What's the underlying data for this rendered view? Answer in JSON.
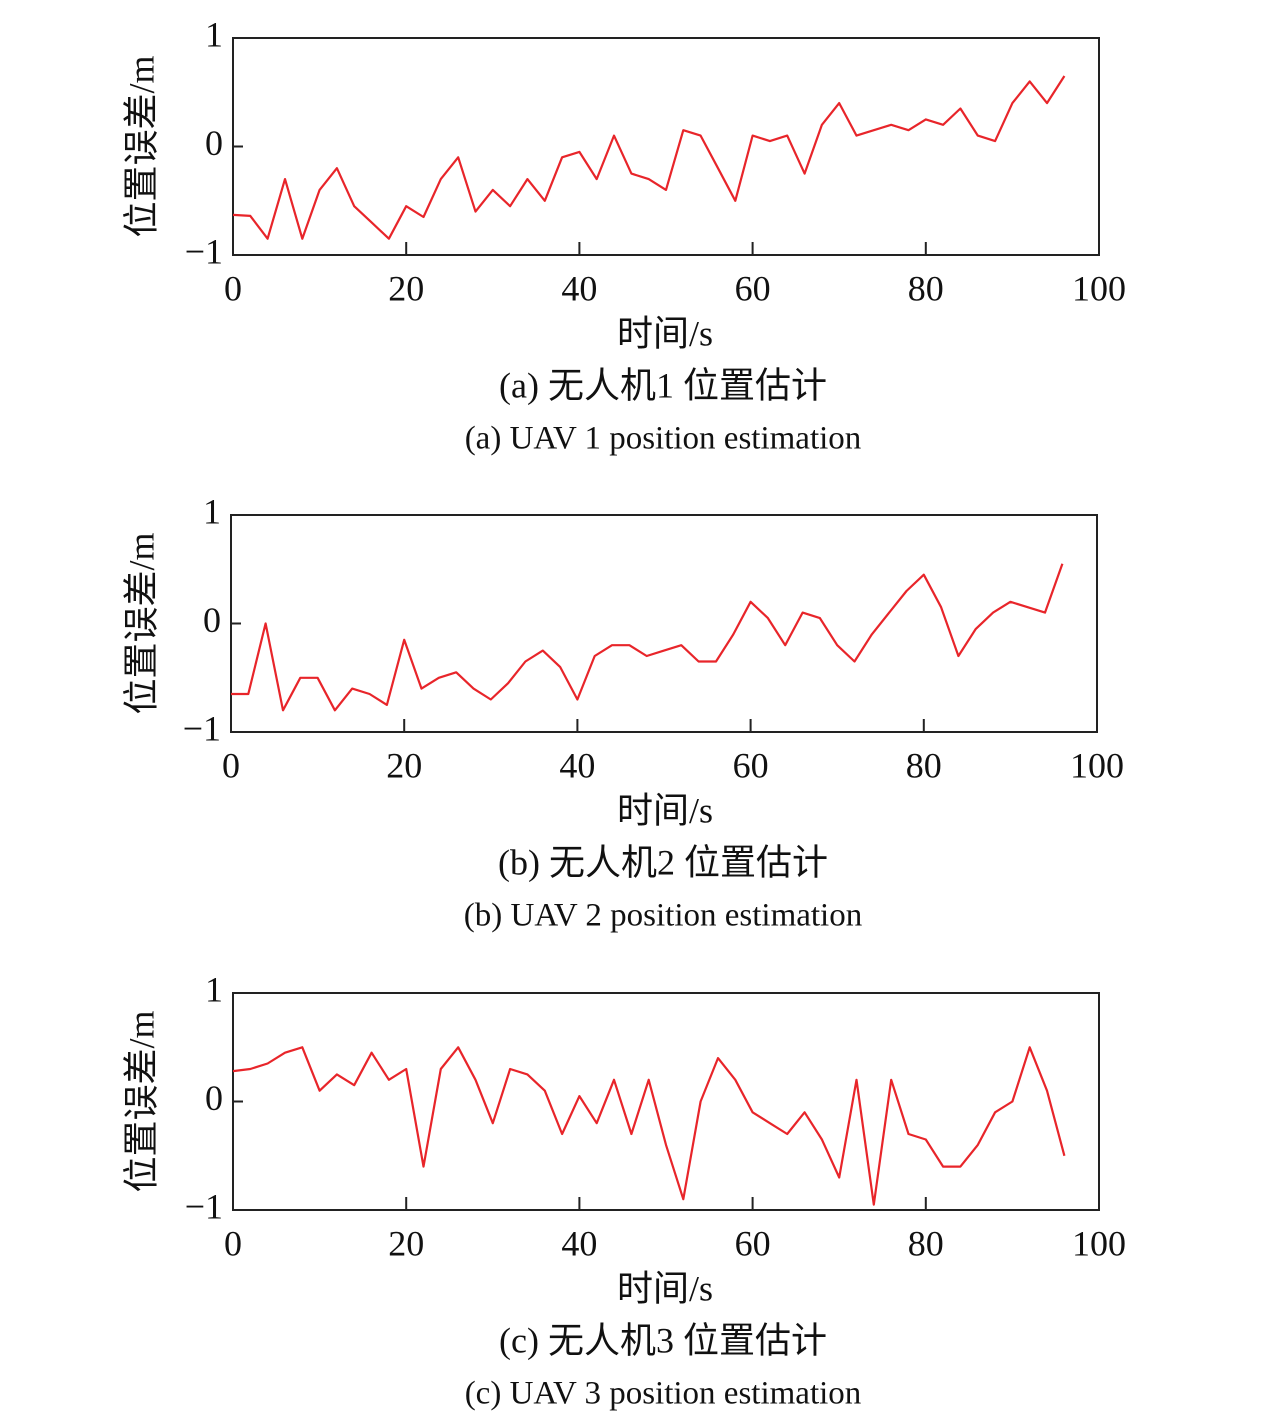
{
  "chart_data": [
    {
      "type": "line",
      "ylabel": "位置误差/m",
      "xlabel": "时间/s",
      "caption": "(a) 无人机1 位置估计",
      "caption_en": "(a) UAV 1 position estimation",
      "color": "#e8252a",
      "xlim": [
        0,
        100
      ],
      "xticks": [
        0,
        20,
        40,
        60,
        80,
        100
      ],
      "ylim": [
        -1,
        1
      ],
      "yticks": [
        {
          "value": -1,
          "label": "−1"
        },
        0,
        1
      ],
      "x": [
        0,
        2,
        4,
        6,
        8,
        10,
        12,
        14,
        16,
        18,
        20,
        22,
        24,
        26,
        28,
        30,
        32,
        34,
        36,
        38,
        40,
        42,
        44,
        46,
        48,
        50,
        52,
        54,
        56,
        58,
        60,
        62,
        64,
        66,
        68,
        70,
        72,
        74,
        76,
        78,
        80,
        82,
        84,
        86,
        88,
        90,
        92,
        94,
        96
      ],
      "values": [
        -0.63,
        -0.64,
        -0.85,
        -0.3,
        -0.85,
        -0.4,
        -0.2,
        -0.55,
        -0.7,
        -0.85,
        -0.55,
        -0.65,
        -0.3,
        -0.1,
        -0.6,
        -0.4,
        -0.55,
        -0.3,
        -0.5,
        -0.1,
        -0.05,
        -0.3,
        0.1,
        -0.25,
        -0.3,
        -0.4,
        0.15,
        0.1,
        -0.2,
        -0.5,
        0.1,
        0.05,
        0.1,
        -0.25,
        0.2,
        0.4,
        0.1,
        0.15,
        0.2,
        0.15,
        0.25,
        0.2,
        0.35,
        0.1,
        0.05,
        0.4,
        0.6,
        0.4,
        0.65
      ]
    },
    {
      "type": "line",
      "ylabel": "位置误差/m",
      "xlabel": "时间/s",
      "caption": "(b) 无人机2 位置估计",
      "caption_en": "(b) UAV 2 position estimation",
      "color": "#e8252a",
      "xlim": [
        0,
        100
      ],
      "xticks": [
        0,
        20,
        40,
        60,
        80,
        100
      ],
      "ylim": [
        -1,
        1
      ],
      "yticks": [
        {
          "value": -1,
          "label": "−1"
        },
        0,
        1
      ],
      "x": [
        0,
        2,
        4,
        6,
        8,
        10,
        12,
        14,
        16,
        18,
        20,
        22,
        24,
        26,
        28,
        30,
        32,
        34,
        36,
        38,
        40,
        42,
        44,
        46,
        48,
        50,
        52,
        54,
        56,
        58,
        60,
        62,
        64,
        66,
        68,
        70,
        72,
        74,
        76,
        78,
        80,
        82,
        84,
        86,
        88,
        90,
        92,
        94,
        96
      ],
      "values": [
        -0.65,
        -0.65,
        0.0,
        -0.8,
        -0.5,
        -0.5,
        -0.8,
        -0.6,
        -0.65,
        -0.75,
        -0.15,
        -0.6,
        -0.5,
        -0.45,
        -0.6,
        -0.7,
        -0.55,
        -0.35,
        -0.25,
        -0.4,
        -0.7,
        -0.3,
        -0.2,
        -0.2,
        -0.3,
        -0.25,
        -0.2,
        -0.35,
        -0.35,
        -0.1,
        0.2,
        0.05,
        -0.2,
        0.1,
        0.05,
        -0.2,
        -0.35,
        -0.1,
        0.1,
        0.3,
        0.45,
        0.15,
        -0.3,
        -0.05,
        0.1,
        0.2,
        0.15,
        0.1,
        0.55
      ]
    },
    {
      "type": "line",
      "ylabel": "位置误差/m",
      "xlabel": "时间/s",
      "caption": "(c) 无人机3 位置估计",
      "caption_en": "(c) UAV 3 position estimation",
      "color": "#e8252a",
      "xlim": [
        0,
        100
      ],
      "xticks": [
        0,
        20,
        40,
        60,
        80,
        100
      ],
      "ylim": [
        -1,
        1
      ],
      "yticks": [
        {
          "value": -1,
          "label": "−1"
        },
        0,
        1
      ],
      "x": [
        0,
        2,
        4,
        6,
        8,
        10,
        12,
        14,
        16,
        18,
        20,
        22,
        24,
        26,
        28,
        30,
        32,
        34,
        36,
        38,
        40,
        42,
        44,
        46,
        48,
        50,
        52,
        54,
        56,
        58,
        60,
        62,
        64,
        66,
        68,
        70,
        72,
        74,
        76,
        78,
        80,
        82,
        84,
        86,
        88,
        90,
        92,
        94,
        96
      ],
      "values": [
        0.28,
        0.3,
        0.35,
        0.45,
        0.5,
        0.1,
        0.25,
        0.15,
        0.45,
        0.2,
        0.3,
        -0.6,
        0.3,
        0.5,
        0.2,
        -0.2,
        0.3,
        0.25,
        0.1,
        -0.3,
        0.05,
        -0.2,
        0.2,
        -0.3,
        0.2,
        -0.4,
        -0.9,
        0.0,
        0.4,
        0.2,
        -0.1,
        -0.2,
        -0.3,
        -0.1,
        -0.35,
        -0.7,
        0.2,
        -0.95,
        0.2,
        -0.3,
        -0.35,
        -0.6,
        -0.6,
        -0.4,
        -0.1,
        0.0,
        0.5,
        0.1,
        -0.5
      ]
    }
  ]
}
